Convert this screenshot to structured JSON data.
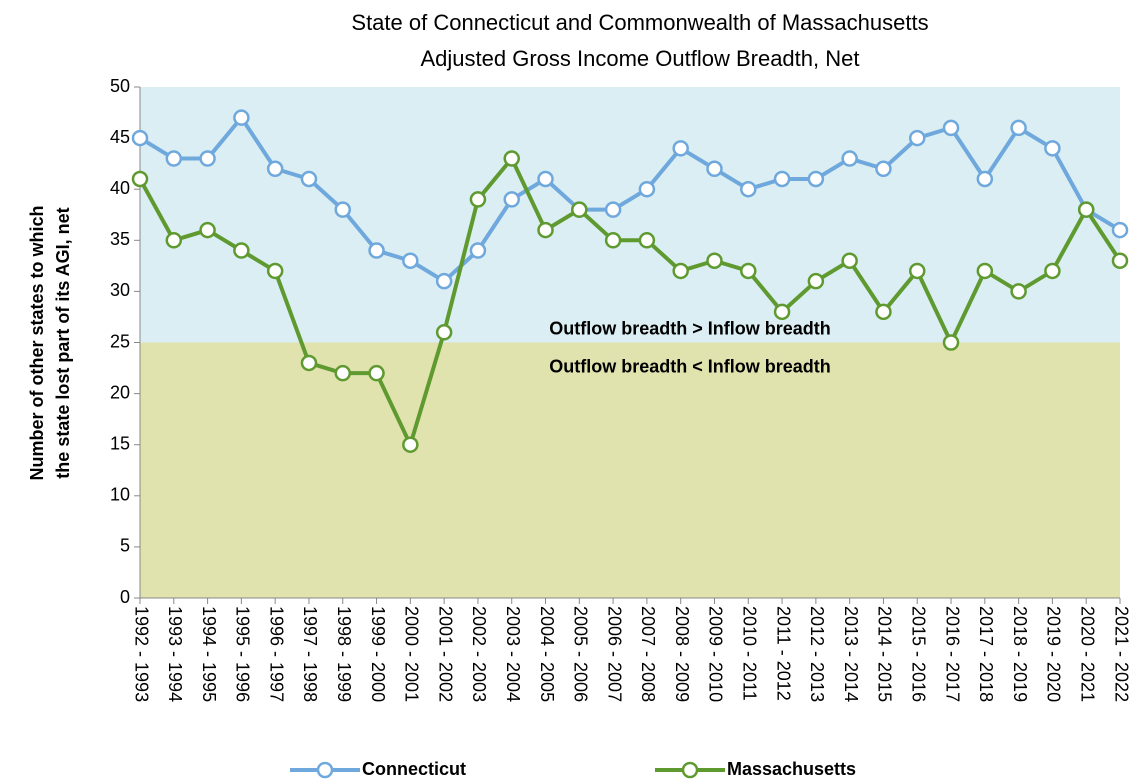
{
  "chart_data": {
    "type": "line",
    "title": [
      "State of Connecticut and Commonwealth of Massachusetts",
      "Adjusted Gross Income Outflow Breadth, Net"
    ],
    "y_label": [
      "Number of other states to which",
      "the state lost part of its AGI, net"
    ],
    "categories": [
      "1992 - 1993",
      "1993 - 1994",
      "1994 - 1995",
      "1995 - 1996",
      "1996 - 1997",
      "1997 - 1998",
      "1998 - 1999",
      "1999 - 2000",
      "2000 - 2001",
      "2001 - 2002",
      "2002 - 2003",
      "2003 - 2004",
      "2004 - 2005",
      "2005 - 2006",
      "2006 - 2007",
      "2007 - 2008",
      "2008 - 2009",
      "2009 - 2010",
      "2010 - 2011",
      "2011 - 2012",
      "2012 - 2013",
      "2013 - 2014",
      "2014 - 2015",
      "2015 - 2016",
      "2016 - 2017",
      "2017 - 2018",
      "2018 - 2019",
      "2019 - 2020",
      "2020 - 2021",
      "2021 - 2022"
    ],
    "series": [
      {
        "name": "Connecticut",
        "color": "#6fa8dc",
        "values": [
          45,
          43,
          43,
          47,
          42,
          41,
          38,
          34,
          33,
          31,
          34,
          39,
          41,
          38,
          38,
          40,
          44,
          42,
          40,
          41,
          41,
          43,
          42,
          45,
          46,
          41,
          46,
          44,
          38,
          36
        ]
      },
      {
        "name": "Massachusetts",
        "color": "#5f9a30",
        "values": [
          41,
          35,
          36,
          34,
          32,
          23,
          22,
          22,
          15,
          26,
          39,
          43,
          36,
          38,
          35,
          35,
          32,
          33,
          32,
          28,
          31,
          33,
          28,
          32,
          25,
          32,
          30,
          32,
          38,
          33
        ]
      }
    ],
    "bands": [
      {
        "from": 25,
        "to": 50,
        "color": "#dbeef3",
        "label": "Outflow breadth > Inflow breadth"
      },
      {
        "from": 0,
        "to": 25,
        "color": "#e1e3ae",
        "label": "Outflow breadth < Inflow breadth"
      }
    ],
    "ylim": [
      0,
      50
    ],
    "yticks": [
      0,
      5,
      10,
      15,
      20,
      25,
      30,
      35,
      40,
      45,
      50
    ],
    "legend": "bottom"
  }
}
